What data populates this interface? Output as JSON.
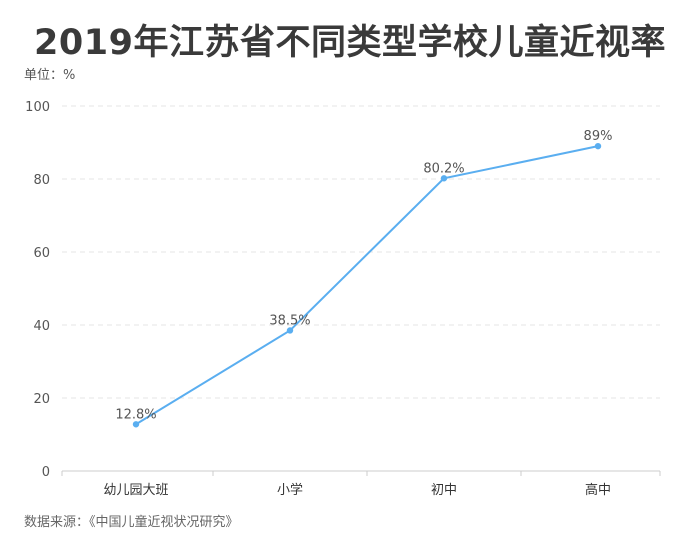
{
  "title": "2019年江苏省不同类型学校儿童近视率",
  "unit_label": "单位：%",
  "source_label": "数据来源：《中国儿童近视状况研究》",
  "colors": {
    "line": "#5aaef0",
    "grid": "#e6e6e6",
    "axis": "#cccccc"
  },
  "chart_data": {
    "type": "line",
    "title": "2019年江苏省不同类型学校儿童近视率",
    "categories": [
      "幼儿园大班",
      "小学",
      "初中",
      "高中"
    ],
    "series": [
      {
        "values": [
          12.8,
          38.5,
          80.2,
          89
        ]
      }
    ],
    "data_labels": [
      "12.8%",
      "38.5%",
      "80.2%",
      "89%"
    ],
    "y_ticks": [
      0,
      20,
      40,
      60,
      80,
      100
    ],
    "ylim": [
      0,
      100
    ],
    "ylabel": "单位：%",
    "xlabel": "",
    "grid": true,
    "legend": "none"
  }
}
